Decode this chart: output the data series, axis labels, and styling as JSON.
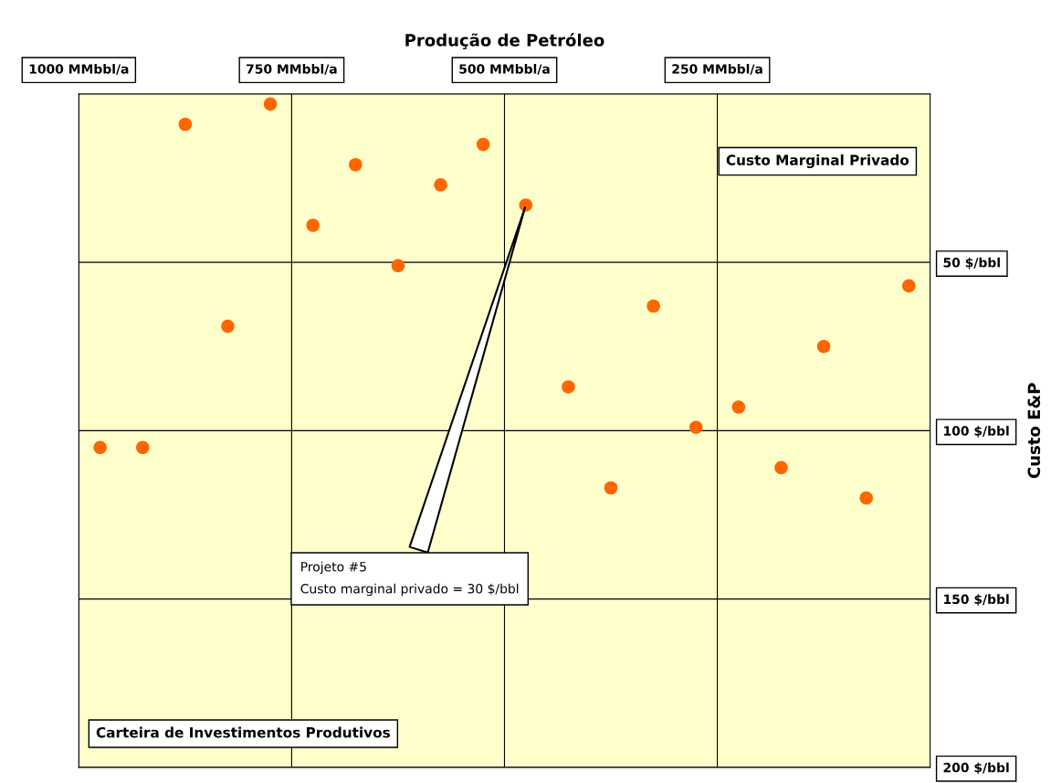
{
  "chart_data": {
    "type": "scatter",
    "xlabel": "Produção de Petróleo",
    "ylabel": "Custo E&P",
    "x": [
      875,
      775,
      675,
      525,
      575,
      475,
      725,
      625,
      825,
      325,
      25,
      125,
      425,
      225,
      275,
      975,
      925,
      175,
      375,
      75
    ],
    "series": [
      {
        "color": "#ff6600",
        "values": [
          9,
          3,
          21,
          15,
          27,
          33,
          39,
          51,
          69,
          63,
          57,
          75,
          87,
          93,
          99,
          105,
          105,
          111,
          117,
          120
        ]
      }
    ],
    "xlim": [
      1000,
      0
    ],
    "xticks": [
      {
        "value": 1000,
        "label": "1000 MMbbl/a"
      },
      {
        "value": 750,
        "label": "750 MMbbl/a"
      },
      {
        "value": 500,
        "label": "500 MMbbl/a"
      },
      {
        "value": 250,
        "label": "250 MMbbl/a"
      }
    ],
    "ylim": [
      200,
      0
    ],
    "yticks": [
      {
        "value": 50,
        "label": "50 $/bbl"
      },
      {
        "value": 100,
        "label": "100 $/bbl"
      },
      {
        "value": 150,
        "label": "150 $/bbl"
      },
      {
        "value": 200,
        "label": "200 $/bbl"
      }
    ],
    "grid": true,
    "marker": "circle",
    "annotations": [
      "Custo Marginal Privado",
      "Carteira de Investimentos Produtivos",
      {
        "text": "Projeto #5\nCusto marginal privado = 30 $/bbl",
        "x": 475,
        "y": 33
      }
    ]
  }
}
